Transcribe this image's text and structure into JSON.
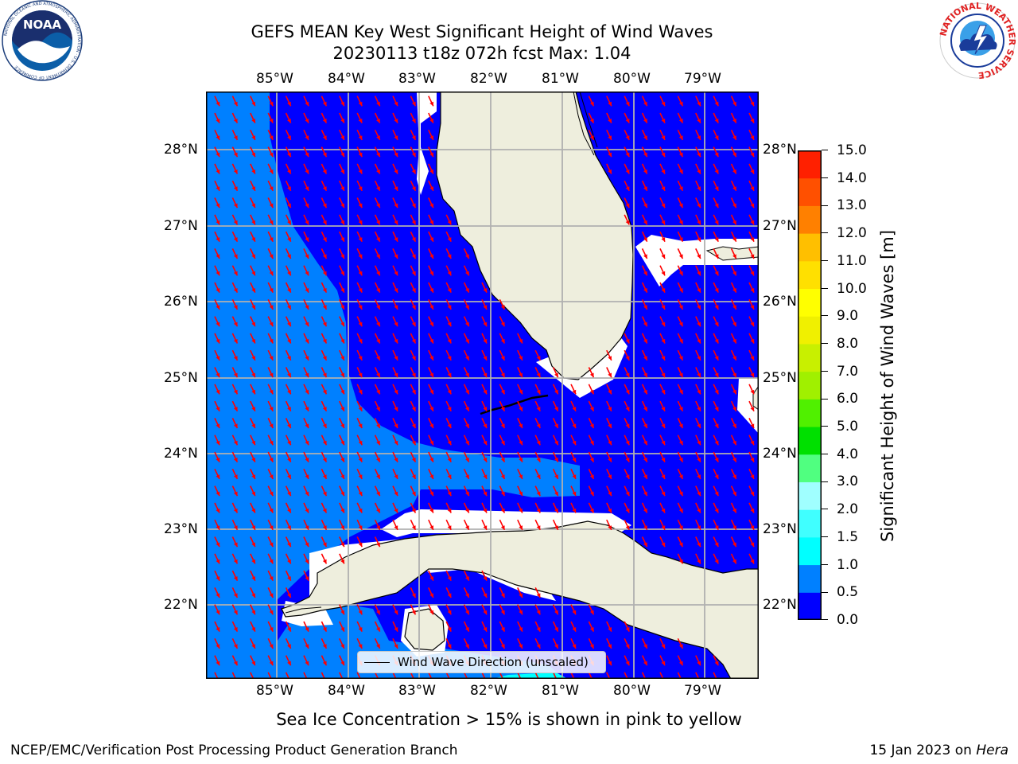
{
  "header": {
    "title": "GEFS MEAN Key West Significant Height of Wind Waves",
    "subtitle": "20230113 t18z 072h fcst   Max: 1.04"
  },
  "logos": {
    "left": {
      "text": "NOAA",
      "ring_text": "NATIONAL OCEANIC AND ATMOSPHERIC ADMINISTRATION · U.S. DEPARTMENT OF COMMERCE"
    },
    "right": {
      "ring_text": "NATIONAL WEATHER SERVICE"
    }
  },
  "map": {
    "lon_labels": [
      "85°W",
      "84°W",
      "83°W",
      "82°W",
      "81°W",
      "80°W",
      "79°W"
    ],
    "lat_labels": [
      "28°N",
      "27°N",
      "26°N",
      "25°N",
      "24°N",
      "23°N",
      "22°N"
    ],
    "lon_range": [
      -86.0,
      -78.5
    ],
    "lat_range": [
      21.0,
      28.75
    ],
    "colors": {
      "land": "#eeeedd",
      "band_0_0_5": "#0000ff",
      "band_0_5_1_0": "#0080ff",
      "cyan": "#00ffff",
      "grid": "#b0b0b0",
      "arrow": "#ff0000"
    },
    "arrow_direction_deg": 155
  },
  "legend": {
    "label": "Wind Wave Direction (unscaled)"
  },
  "colorbar": {
    "label": "Significant Height of Wind Waves [m]",
    "ticks": [
      "0.0",
      "0.5",
      "1.0",
      "1.5",
      "2.0",
      "3.0",
      "4.0",
      "5.0",
      "6.0",
      "7.0",
      "8.0",
      "9.0",
      "10.0",
      "11.0",
      "12.0",
      "13.0",
      "14.0",
      "15.0"
    ],
    "colors": [
      "#0000ff",
      "#0080ff",
      "#00ffff",
      "#40ffff",
      "#a0ffff",
      "#50ff80",
      "#00e000",
      "#50f000",
      "#a0f000",
      "#c8f000",
      "#f0f000",
      "#ffff00",
      "#ffe000",
      "#ffbf00",
      "#ff8000",
      "#ff5000",
      "#ff2000"
    ]
  },
  "note": "Sea Ice Concentration > 15% is shown in pink to yellow",
  "footer": {
    "left": "NCEP/EMC/Verification Post Processing Product Generation Branch",
    "right_prefix": "15 Jan 2023 on ",
    "right_machine": "Hera"
  }
}
